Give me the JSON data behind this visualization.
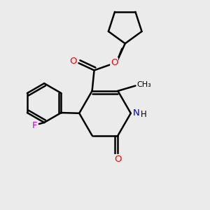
{
  "bg_color": "#ebebeb",
  "line_color": "#000000",
  "bond_width": 1.8,
  "atom_colors": {
    "O": "#ff0000",
    "N": "#0000cc",
    "F": "#dd00dd",
    "H": "#000000",
    "C": "#000000"
  },
  "figsize": [
    3.0,
    3.0
  ],
  "dpi": 100
}
